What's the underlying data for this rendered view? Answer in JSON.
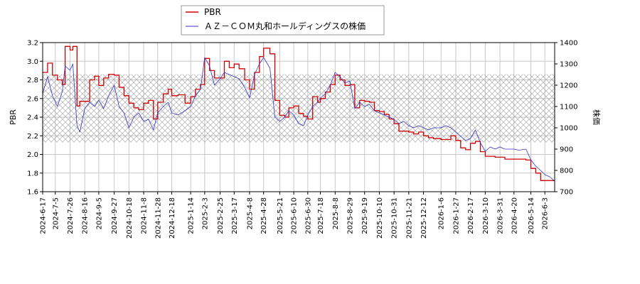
{
  "chart_data": {
    "type": "line",
    "title": "",
    "legend": {
      "placement": "top-center",
      "entries": [
        {
          "label": "PBR",
          "color": "#d00000"
        },
        {
          "label": "ＡＺ－ＣＯＭ丸和ホールディングスの株価",
          "color": "#3333cc"
        }
      ]
    },
    "ylabel_left": "PBR",
    "ylabel_right": "株価",
    "ylim_left": [
      1.6,
      3.2
    ],
    "ylim_right": [
      700,
      1400
    ],
    "yticks_left": [
      "1.6",
      "1.8",
      "2.0",
      "2.2",
      "2.4",
      "2.6",
      "2.8",
      "3.0",
      "3.2"
    ],
    "yticks_right": [
      "700",
      "800",
      "900",
      "1000",
      "1100",
      "1200",
      "1300",
      "1400"
    ],
    "xlim": [
      "2024-06-17",
      "2026-06-17"
    ],
    "xticks": [
      "2024-6-17",
      "2024-7-5",
      "2024-7-26",
      "2024-8-16",
      "2024-9-5",
      "2024-9-27",
      "2024-10-18",
      "2024-11-8",
      "2024-11-28",
      "2024-12-18",
      "2025-1-14",
      "2025-2-3",
      "2025-2-25",
      "2025-3-17",
      "2025-4-8",
      "2025-4-28",
      "2025-5-21",
      "2025-6-10",
      "2025-6-30",
      "2025-7-18",
      "2025-8-8",
      "2025-8-29",
      "2025-9-19",
      "2025-10-10",
      "2025-10-31",
      "2025-11-21",
      "2025-12-12",
      "2026-1-6",
      "2026-1-27",
      "2026-2-17",
      "2026-3-10",
      "2026-3-31",
      "2026-4-20",
      "2026-5-14",
      "2026-6-3"
    ],
    "grid": true,
    "pbr_band": [
      2.13,
      2.86
    ],
    "series": [
      {
        "name": "PBR",
        "color": "#d00000",
        "axis": "left",
        "points": [
          [
            "2024-06-17",
            2.88
          ],
          [
            "2024-06-24",
            2.98
          ],
          [
            "2024-07-01",
            2.85
          ],
          [
            "2024-07-08",
            2.8
          ],
          [
            "2024-07-15",
            2.75
          ],
          [
            "2024-07-19",
            3.16
          ],
          [
            "2024-07-26",
            3.12
          ],
          [
            "2024-07-30",
            3.16
          ],
          [
            "2024-08-05",
            2.52
          ],
          [
            "2024-08-09",
            2.57
          ],
          [
            "2024-08-16",
            2.57
          ],
          [
            "2024-08-23",
            2.8
          ],
          [
            "2024-08-30",
            2.84
          ],
          [
            "2024-09-05",
            2.74
          ],
          [
            "2024-09-12",
            2.82
          ],
          [
            "2024-09-19",
            2.86
          ],
          [
            "2024-09-27",
            2.85
          ],
          [
            "2024-10-04",
            2.72
          ],
          [
            "2024-10-11",
            2.63
          ],
          [
            "2024-10-18",
            2.55
          ],
          [
            "2024-10-25",
            2.5
          ],
          [
            "2024-11-01",
            2.48
          ],
          [
            "2024-11-08",
            2.55
          ],
          [
            "2024-11-15",
            2.58
          ],
          [
            "2024-11-22",
            2.38
          ],
          [
            "2024-11-28",
            2.56
          ],
          [
            "2024-12-06",
            2.65
          ],
          [
            "2024-12-13",
            2.7
          ],
          [
            "2024-12-18",
            2.63
          ],
          [
            "2024-12-27",
            2.64
          ],
          [
            "2025-01-06",
            2.55
          ],
          [
            "2025-01-14",
            2.62
          ],
          [
            "2025-01-21",
            2.7
          ],
          [
            "2025-01-28",
            2.75
          ],
          [
            "2025-02-03",
            3.03
          ],
          [
            "2025-02-10",
            2.9
          ],
          [
            "2025-02-17",
            2.82
          ],
          [
            "2025-02-25",
            2.82
          ],
          [
            "2025-03-03",
            3.0
          ],
          [
            "2025-03-10",
            2.93
          ],
          [
            "2025-03-17",
            2.97
          ],
          [
            "2025-03-24",
            2.92
          ],
          [
            "2025-04-01",
            2.8
          ],
          [
            "2025-04-08",
            2.7
          ],
          [
            "2025-04-15",
            2.88
          ],
          [
            "2025-04-22",
            3.05
          ],
          [
            "2025-04-28",
            3.14
          ],
          [
            "2025-05-07",
            3.08
          ],
          [
            "2025-05-14",
            2.58
          ],
          [
            "2025-05-21",
            2.42
          ],
          [
            "2025-05-28",
            2.4
          ],
          [
            "2025-06-03",
            2.5
          ],
          [
            "2025-06-10",
            2.52
          ],
          [
            "2025-06-17",
            2.44
          ],
          [
            "2025-06-24",
            2.41
          ],
          [
            "2025-06-30",
            2.38
          ],
          [
            "2025-07-07",
            2.62
          ],
          [
            "2025-07-14",
            2.56
          ],
          [
            "2025-07-18",
            2.6
          ],
          [
            "2025-07-25",
            2.67
          ],
          [
            "2025-08-01",
            2.75
          ],
          [
            "2025-08-08",
            2.85
          ],
          [
            "2025-08-15",
            2.8
          ],
          [
            "2025-08-22",
            2.74
          ],
          [
            "2025-08-29",
            2.75
          ],
          [
            "2025-09-05",
            2.5
          ],
          [
            "2025-09-12",
            2.58
          ],
          [
            "2025-09-19",
            2.57
          ],
          [
            "2025-09-26",
            2.56
          ],
          [
            "2025-10-03",
            2.47
          ],
          [
            "2025-10-10",
            2.46
          ],
          [
            "2025-10-17",
            2.43
          ],
          [
            "2025-10-24",
            2.38
          ],
          [
            "2025-10-31",
            2.33
          ],
          [
            "2025-11-07",
            2.25
          ],
          [
            "2025-11-14",
            2.25
          ],
          [
            "2025-11-21",
            2.24
          ],
          [
            "2025-11-28",
            2.22
          ],
          [
            "2025-12-05",
            2.24
          ],
          [
            "2025-12-12",
            2.2
          ],
          [
            "2025-12-19",
            2.18
          ],
          [
            "2025-12-26",
            2.17
          ],
          [
            "2026-01-06",
            2.16
          ],
          [
            "2026-01-13",
            2.16
          ],
          [
            "2026-01-20",
            2.2
          ],
          [
            "2026-01-27",
            2.15
          ],
          [
            "2026-02-03",
            2.07
          ],
          [
            "2026-02-10",
            2.05
          ],
          [
            "2026-02-17",
            2.12
          ],
          [
            "2026-02-24",
            2.14
          ],
          [
            "2026-03-03",
            2.03
          ],
          [
            "2026-03-10",
            1.98
          ],
          [
            "2026-03-17",
            1.98
          ],
          [
            "2026-03-24",
            1.97
          ],
          [
            "2026-03-31",
            1.97
          ],
          [
            "2026-04-07",
            1.95
          ],
          [
            "2026-04-13",
            1.95
          ],
          [
            "2026-04-20",
            1.95
          ],
          [
            "2026-04-27",
            1.95
          ],
          [
            "2026-05-07",
            1.94
          ],
          [
            "2026-05-14",
            1.85
          ],
          [
            "2026-05-21",
            1.8
          ],
          [
            "2026-05-28",
            1.72
          ],
          [
            "2026-06-03",
            1.72
          ],
          [
            "2026-06-10",
            1.72
          ],
          [
            "2026-06-17",
            1.72
          ]
        ]
      },
      {
        "name": "ＡＺ－ＣＯＭ丸和ホールディングスの株価",
        "color": "#3333cc",
        "axis": "right",
        "points": [
          [
            "2024-06-17",
            1160
          ],
          [
            "2024-06-24",
            1240
          ],
          [
            "2024-07-01",
            1150
          ],
          [
            "2024-07-08",
            1100
          ],
          [
            "2024-07-15",
            1170
          ],
          [
            "2024-07-19",
            1290
          ],
          [
            "2024-07-26",
            1270
          ],
          [
            "2024-07-30",
            1300
          ],
          [
            "2024-08-05",
            1010
          ],
          [
            "2024-08-09",
            980
          ],
          [
            "2024-08-16",
            1090
          ],
          [
            "2024-08-23",
            1120
          ],
          [
            "2024-08-30",
            1100
          ],
          [
            "2024-09-05",
            1130
          ],
          [
            "2024-09-12",
            1090
          ],
          [
            "2024-09-19",
            1150
          ],
          [
            "2024-09-27",
            1200
          ],
          [
            "2024-10-04",
            1100
          ],
          [
            "2024-10-11",
            1070
          ],
          [
            "2024-10-18",
            1000
          ],
          [
            "2024-10-25",
            1050
          ],
          [
            "2024-11-01",
            1070
          ],
          [
            "2024-11-08",
            1030
          ],
          [
            "2024-11-15",
            1040
          ],
          [
            "2024-11-22",
            990
          ],
          [
            "2024-11-28",
            1070
          ],
          [
            "2024-12-06",
            1100
          ],
          [
            "2024-12-13",
            1120
          ],
          [
            "2024-12-18",
            1070
          ],
          [
            "2024-12-27",
            1060
          ],
          [
            "2025-01-06",
            1080
          ],
          [
            "2025-01-14",
            1100
          ],
          [
            "2025-01-21",
            1150
          ],
          [
            "2025-01-28",
            1180
          ],
          [
            "2025-02-03",
            1330
          ],
          [
            "2025-02-10",
            1290
          ],
          [
            "2025-02-17",
            1200
          ],
          [
            "2025-02-25",
            1230
          ],
          [
            "2025-03-03",
            1260
          ],
          [
            "2025-03-10",
            1250
          ],
          [
            "2025-03-17",
            1240
          ],
          [
            "2025-03-24",
            1230
          ],
          [
            "2025-04-01",
            1190
          ],
          [
            "2025-04-08",
            1140
          ],
          [
            "2025-04-15",
            1250
          ],
          [
            "2025-04-22",
            1300
          ],
          [
            "2025-04-28",
            1330
          ],
          [
            "2025-05-07",
            1280
          ],
          [
            "2025-05-14",
            1050
          ],
          [
            "2025-05-21",
            1030
          ],
          [
            "2025-05-28",
            1050
          ],
          [
            "2025-06-03",
            1080
          ],
          [
            "2025-06-10",
            1060
          ],
          [
            "2025-06-17",
            1020
          ],
          [
            "2025-06-24",
            1010
          ],
          [
            "2025-06-30",
            1060
          ],
          [
            "2025-07-07",
            1100
          ],
          [
            "2025-07-14",
            1120
          ],
          [
            "2025-07-18",
            1140
          ],
          [
            "2025-07-25",
            1160
          ],
          [
            "2025-08-01",
            1200
          ],
          [
            "2025-08-08",
            1260
          ],
          [
            "2025-08-15",
            1240
          ],
          [
            "2025-08-22",
            1210
          ],
          [
            "2025-08-29",
            1220
          ],
          [
            "2025-09-05",
            1090
          ],
          [
            "2025-09-12",
            1120
          ],
          [
            "2025-09-19",
            1100
          ],
          [
            "2025-09-26",
            1110
          ],
          [
            "2025-10-03",
            1080
          ],
          [
            "2025-10-10",
            1070
          ],
          [
            "2025-10-17",
            1060
          ],
          [
            "2025-10-24",
            1050
          ],
          [
            "2025-10-31",
            1040
          ],
          [
            "2025-11-07",
            1020
          ],
          [
            "2025-11-14",
            1030
          ],
          [
            "2025-11-21",
            1010
          ],
          [
            "2025-11-28",
            1000
          ],
          [
            "2025-12-05",
            1010
          ],
          [
            "2025-12-12",
            1000
          ],
          [
            "2025-12-19",
            990
          ],
          [
            "2025-12-26",
            1000
          ],
          [
            "2026-01-06",
            1000
          ],
          [
            "2026-01-13",
            1010
          ],
          [
            "2026-01-20",
            1000
          ],
          [
            "2026-01-27",
            980
          ],
          [
            "2026-02-03",
            960
          ],
          [
            "2026-02-10",
            940
          ],
          [
            "2026-02-17",
            950
          ],
          [
            "2026-02-24",
            990
          ],
          [
            "2026-03-03",
            930
          ],
          [
            "2026-03-10",
            890
          ],
          [
            "2026-03-17",
            910
          ],
          [
            "2026-03-24",
            900
          ],
          [
            "2026-03-31",
            910
          ],
          [
            "2026-04-07",
            900
          ],
          [
            "2026-04-13",
            900
          ],
          [
            "2026-04-20",
            900
          ],
          [
            "2026-04-27",
            895
          ],
          [
            "2026-05-07",
            900
          ],
          [
            "2026-05-14",
            850
          ],
          [
            "2026-05-21",
            820
          ],
          [
            "2026-05-28",
            800
          ],
          [
            "2026-06-03",
            780
          ],
          [
            "2026-06-10",
            770
          ],
          [
            "2026-06-17",
            750
          ]
        ]
      }
    ]
  }
}
